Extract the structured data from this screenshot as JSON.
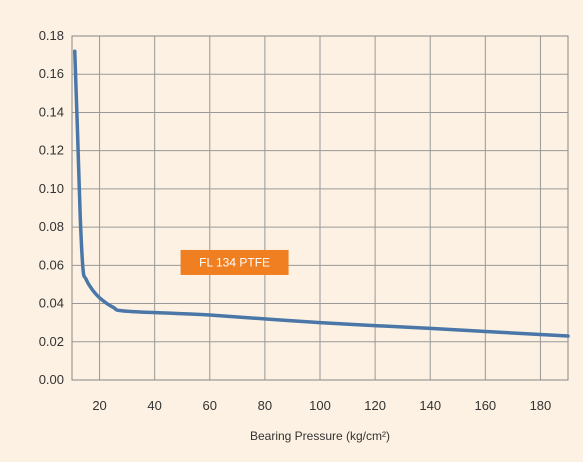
{
  "chart_data": {
    "type": "line",
    "title": "",
    "xlabel": "Bearing Pressure (kg/cm²)",
    "ylabel": "",
    "xlim": [
      10,
      190
    ],
    "ylim": [
      0,
      0.18
    ],
    "x_ticks": [
      20,
      40,
      60,
      80,
      100,
      120,
      140,
      160,
      180
    ],
    "y_ticks": [
      0,
      0.02,
      0.04,
      0.06,
      0.08,
      0.1,
      0.12,
      0.14,
      0.16,
      0.18
    ],
    "x_tick_labels": [
      "20",
      "40",
      "60",
      "80",
      "100",
      "120",
      "140",
      "160",
      "180"
    ],
    "y_tick_labels": [
      "0.00",
      "0.02",
      "0.04",
      "0.06",
      "0.08",
      "0.10",
      "0.12",
      "0.14",
      "0.16",
      "0.18"
    ],
    "grid": true,
    "legend": "none",
    "series": [
      {
        "color": "#4a77a8",
        "x": [
          11,
          12,
          13,
          14,
          15,
          17,
          20,
          25,
          30,
          60,
          100,
          140,
          190
        ],
        "y": [
          0.172,
          0.13,
          0.085,
          0.058,
          0.053,
          0.048,
          0.043,
          0.038,
          0.036,
          0.034,
          0.03,
          0.027,
          0.023
        ]
      }
    ],
    "annotations": [
      {
        "text": "FL 134 PTFE",
        "x": 69,
        "y": 0.0615,
        "color": "#f07f22"
      }
    ]
  }
}
